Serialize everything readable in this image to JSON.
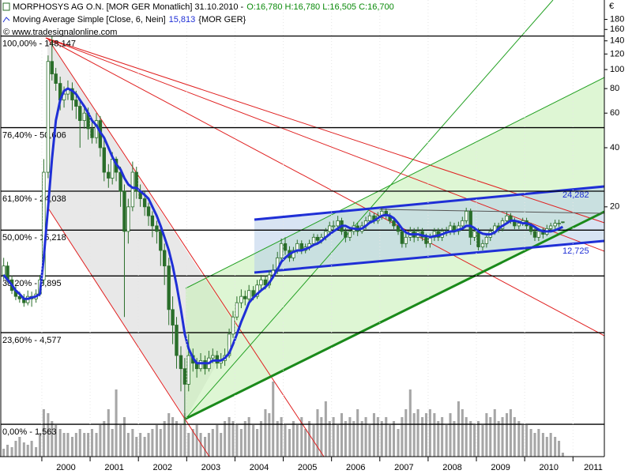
{
  "chart_data": {
    "type": "candlestick",
    "title": "MORPHOSYS AG O.N. [MOR GER  Monatlich] 31.10.2010 -",
    "ohlc_label": "O:16,780 H:16,780 L:16,505 C:16,700",
    "indicator_label": "Moving Average Simple [Close, 6, Nein]",
    "indicator_value_label": "15,813",
    "indicator_symbol": "{MOR GER}",
    "source": "© www.tradesignalonline.com",
    "y_axis_label": "€",
    "color": "#2a6e2a",
    "log_scale": true,
    "ylim": [
      1.07,
      226
    ],
    "yticks": [
      20,
      40,
      60,
      80,
      100,
      120,
      140,
      160,
      180
    ],
    "xlim": [
      1999.15,
      2011.65
    ],
    "xticks": [
      2000,
      2001,
      2002,
      2003,
      2004,
      2005,
      2006,
      2007,
      2008,
      2009,
      2010,
      2011
    ],
    "x": [
      1999.21,
      1999.29,
      1999.38,
      1999.46,
      1999.54,
      1999.63,
      1999.71,
      1999.79,
      1999.88,
      1999.96,
      2000.04,
      2000.13,
      2000.21,
      2000.29,
      2000.38,
      2000.46,
      2000.54,
      2000.63,
      2000.71,
      2000.79,
      2000.88,
      2000.96,
      2001.04,
      2001.13,
      2001.21,
      2001.29,
      2001.38,
      2001.46,
      2001.54,
      2001.63,
      2001.71,
      2001.79,
      2001.88,
      2001.96,
      2002.04,
      2002.13,
      2002.21,
      2002.29,
      2002.38,
      2002.46,
      2002.54,
      2002.63,
      2002.71,
      2002.79,
      2002.88,
      2002.96,
      2003.04,
      2003.13,
      2003.21,
      2003.29,
      2003.38,
      2003.46,
      2003.54,
      2003.63,
      2003.71,
      2003.79,
      2003.88,
      2003.96,
      2004.04,
      2004.13,
      2004.21,
      2004.29,
      2004.38,
      2004.46,
      2004.54,
      2004.63,
      2004.71,
      2004.79,
      2004.88,
      2004.96,
      2005.04,
      2005.13,
      2005.21,
      2005.29,
      2005.38,
      2005.46,
      2005.54,
      2005.63,
      2005.71,
      2005.79,
      2005.88,
      2005.96,
      2006.04,
      2006.13,
      2006.21,
      2006.29,
      2006.38,
      2006.46,
      2006.54,
      2006.63,
      2006.71,
      2006.79,
      2006.88,
      2006.96,
      2007.04,
      2007.13,
      2007.21,
      2007.29,
      2007.38,
      2007.46,
      2007.54,
      2007.63,
      2007.71,
      2007.79,
      2007.88,
      2007.96,
      2008.04,
      2008.13,
      2008.21,
      2008.29,
      2008.38,
      2008.46,
      2008.54,
      2008.63,
      2008.71,
      2008.79,
      2008.88,
      2008.96,
      2009.04,
      2009.13,
      2009.21,
      2009.29,
      2009.38,
      2009.46,
      2009.54,
      2009.63,
      2009.71,
      2009.79,
      2009.88,
      2009.96,
      2010.04,
      2010.13,
      2010.21,
      2010.29,
      2010.38,
      2010.46,
      2010.54,
      2010.63,
      2010.71,
      2010.79
    ],
    "open": [
      9,
      10,
      8.5,
      7.5,
      7,
      6.8,
      6.5,
      7,
      6.8,
      7.2,
      8.5,
      30,
      110,
      95,
      85,
      70,
      75,
      80,
      70,
      65,
      55,
      60,
      50,
      45,
      55,
      40,
      30,
      28,
      35,
      30,
      24,
      15,
      20,
      30,
      24,
      22,
      20,
      18,
      16,
      15,
      12,
      10,
      6,
      5,
      3.5,
      3,
      2.5,
      3.5,
      3.2,
      3,
      3.3,
      3,
      3.4,
      3.5,
      3.2,
      3.3,
      3.5,
      4.5,
      5.5,
      6.5,
      7,
      6.8,
      7.5,
      7,
      8,
      8.5,
      8,
      9,
      9.5,
      11,
      13,
      12,
      11,
      12,
      13,
      12,
      12.5,
      13,
      14,
      13.5,
      14,
      15,
      16,
      16,
      17,
      15,
      14,
      15,
      16,
      15,
      16,
      17,
      18,
      17,
      18,
      19,
      18,
      17,
      16,
      15,
      13,
      14,
      15,
      14,
      15,
      14,
      13,
      14,
      15,
      14,
      15,
      15,
      16,
      15,
      16,
      17,
      19,
      14,
      15,
      12.5,
      13,
      14,
      15,
      16,
      15.5,
      17,
      18,
      17,
      16,
      16.5,
      17,
      16,
      15,
      14,
      15,
      14.5,
      15.5,
      16,
      16.5,
      16.78
    ],
    "high": [
      11,
      10.5,
      8.9,
      7.9,
      7.4,
      7.2,
      7.5,
      7.4,
      7.6,
      9,
      35,
      118,
      148.147,
      102,
      92,
      82,
      88,
      86,
      78,
      70,
      66,
      64,
      56,
      60,
      58,
      44,
      33,
      38,
      36,
      32,
      26,
      22,
      34,
      32,
      26,
      24,
      21,
      19,
      17,
      16,
      13,
      11,
      7,
      5.5,
      3.9,
      3.4,
      4.5,
      3.8,
      3.4,
      3.6,
      3.5,
      3.7,
      3.8,
      3.7,
      3.6,
      3.8,
      4.8,
      5.9,
      7,
      7.6,
      7.5,
      8,
      7.9,
      8.5,
      9,
      8.9,
      9.5,
      10.2,
      11.8,
      13.8,
      14,
      12.6,
      12.5,
      13.6,
      13.5,
      13,
      13.6,
      14.6,
      14.5,
      14.6,
      15.6,
      16.8,
      17,
      18,
      17.6,
      15.6,
      15.8,
      16.8,
      16.6,
      16.8,
      17.8,
      18.8,
      18.6,
      18.8,
      19.8,
      19.6,
      18.6,
      17.6,
      16.6,
      15.6,
      14.6,
      15.8,
      15.6,
      15.8,
      15.6,
      14.6,
      14.6,
      15.6,
      15.6,
      15.6,
      15.8,
      16.8,
      16.6,
      16.8,
      17.8,
      19.8,
      19.6,
      15.6,
      15.6,
      13.6,
      14.6,
      15.6,
      16.6,
      16.6,
      17.6,
      18.8,
      18.6,
      17.6,
      17,
      17.6,
      17.6,
      16.6,
      15.6,
      15.6,
      15.6,
      16.2,
      16.6,
      17.2,
      17.2,
      16.78
    ],
    "low": [
      8.5,
      8.2,
      7.2,
      6.7,
      6.5,
      6.2,
      6.3,
      6.2,
      6.5,
      7,
      8,
      28,
      88,
      78,
      62,
      64,
      70,
      62,
      56,
      40,
      50,
      44,
      42,
      42,
      36,
      27,
      25,
      26,
      27,
      20,
      5.5,
      13,
      19,
      22,
      20,
      18,
      16,
      14,
      13,
      10,
      8,
      5,
      4,
      3,
      2.3,
      1.563,
      2.3,
      2.9,
      2.7,
      2.9,
      2.8,
      2.9,
      3.2,
      3,
      3,
      3.1,
      3.4,
      4.3,
      5.3,
      6.1,
      6.3,
      6.5,
      6.7,
      6.8,
      7.6,
      7.6,
      7.7,
      8.6,
      9.1,
      10.6,
      11.4,
      10.5,
      10.6,
      11.6,
      11.5,
      11.6,
      12,
      12.6,
      13,
      13,
      13.5,
      14.6,
      15,
      15.4,
      14.4,
      13.2,
      13.4,
      14.4,
      14.2,
      14.6,
      15.4,
      16.4,
      16.4,
      16.4,
      17.2,
      17.4,
      16.4,
      15.4,
      14.4,
      12.4,
      12.4,
      13.4,
      13.2,
      13.4,
      13.4,
      12.4,
      12.4,
      13.4,
      13.4,
      13.4,
      14.2,
      14.4,
      14.4,
      14.4,
      15.4,
      16.4,
      12.8,
      13.4,
      12,
      12,
      12.4,
      13.4,
      14.4,
      14.8,
      15,
      16.4,
      16.4,
      15.4,
      15.4,
      16,
      15.4,
      14.4,
      13.4,
      13.4,
      13.8,
      14.2,
      15,
      15.4,
      15.8,
      16.505
    ],
    "close": [
      10,
      8.5,
      7.5,
      7,
      6.8,
      6.5,
      7,
      6.8,
      7.2,
      8.5,
      30,
      110,
      95,
      85,
      70,
      75,
      80,
      70,
      65,
      55,
      60,
      50,
      45,
      55,
      40,
      30,
      28,
      35,
      30,
      24,
      15,
      20,
      30,
      24,
      22,
      20,
      18,
      16,
      15,
      12,
      10,
      6,
      5,
      3.5,
      3,
      2.5,
      3.5,
      3.2,
      3,
      3.3,
      3,
      3.4,
      3.5,
      3.2,
      3.3,
      3.5,
      4.5,
      5.5,
      6.5,
      7,
      6.8,
      7.5,
      7,
      8,
      8.5,
      8,
      9,
      9.5,
      11,
      13,
      12,
      11,
      12,
      13,
      12,
      12.5,
      13,
      14,
      13.5,
      14,
      15,
      16,
      16,
      17,
      15,
      14,
      15,
      16,
      15,
      16,
      17,
      18,
      17,
      18,
      19,
      18,
      17,
      16,
      15,
      13,
      14,
      15,
      14,
      15,
      14,
      13,
      14,
      15,
      14,
      15,
      15,
      16,
      15,
      16,
      17,
      19,
      14,
      15,
      12.5,
      13,
      14,
      15,
      16,
      15.5,
      17,
      18,
      17,
      16,
      16.5,
      17,
      16,
      15,
      14,
      15,
      14.5,
      15.5,
      16,
      16.5,
      16.5,
      16.7
    ],
    "moving_average": {
      "color": "#1f2fd6",
      "values": [
        9,
        8.5,
        8,
        7.5,
        7.2,
        6.8,
        6.8,
        6.9,
        7,
        7.2,
        11,
        20,
        35,
        55,
        70,
        78,
        80,
        78,
        75,
        70,
        65,
        60,
        55,
        52,
        48,
        45,
        40,
        36,
        33,
        31,
        28,
        26,
        25,
        25,
        24,
        23,
        22,
        20,
        18,
        16,
        14,
        12,
        10,
        8,
        6,
        4.5,
        3.8,
        3.4,
        3.2,
        3.2,
        3.2,
        3.2,
        3.3,
        3.3,
        3.3,
        3.4,
        3.6,
        4,
        4.5,
        5.2,
        5.8,
        6.5,
        6.9,
        7.2,
        7.5,
        7.8,
        8.2,
        8.8,
        9.6,
        10.5,
        11,
        11.5,
        11.8,
        12,
        12,
        12.2,
        12.4,
        12.8,
        13,
        13.4,
        14,
        14.5,
        15,
        15.5,
        16,
        16,
        15.6,
        15.5,
        15.4,
        15.5,
        16,
        16.6,
        17,
        17.5,
        18,
        18.2,
        18,
        17.5,
        16.5,
        15.5,
        14.8,
        14.5,
        14.5,
        14.5,
        14.3,
        14.2,
        14,
        14.2,
        14.3,
        14.5,
        14.8,
        15,
        15,
        15.3,
        15.5,
        16,
        16,
        15.6,
        15,
        14.6,
        14.5,
        14.5,
        14.8,
        15.5,
        16,
        16.5,
        17,
        17,
        16.8,
        16.5,
        16.5,
        16.2,
        15.8,
        15.3,
        15,
        15,
        15,
        15.2,
        15.5,
        15.813
      ]
    },
    "volume": {
      "color": "#a6a6a6",
      "axis": "y2",
      "values": [
        10,
        15,
        12,
        20,
        25,
        18,
        15,
        20,
        12,
        30,
        60,
        55,
        45,
        40,
        35,
        30,
        30,
        25,
        30,
        35,
        30,
        30,
        35,
        30,
        40,
        45,
        60,
        35,
        85,
        40,
        50,
        30,
        35,
        25,
        30,
        25,
        30,
        35,
        40,
        35,
        45,
        55,
        50,
        45,
        40,
        55,
        30,
        35,
        40,
        30,
        25,
        30,
        35,
        40,
        30,
        45,
        50,
        45,
        40,
        35,
        45,
        50,
        40,
        35,
        45,
        60,
        55,
        95,
        45,
        50,
        40,
        35,
        45,
        40,
        50,
        35,
        45,
        40,
        60,
        50,
        70,
        45,
        50,
        40,
        55,
        45,
        50,
        45,
        60,
        45,
        50,
        40,
        55,
        50,
        45,
        50,
        40,
        45,
        35,
        50,
        60,
        85,
        55,
        60,
        50,
        55,
        60,
        55,
        45,
        50,
        40,
        55,
        45,
        70,
        60,
        50,
        45,
        40,
        45,
        40,
        55,
        50,
        60,
        45,
        50,
        55,
        60,
        50,
        45,
        40,
        40,
        35,
        30,
        35,
        30,
        25,
        30,
        25,
        20,
        5
      ]
    },
    "y2lim": [
      0,
      100
    ],
    "fib_levels": [
      {
        "value": 148.147,
        "label": "100,00% - 148,147"
      },
      {
        "value": 50.606,
        "label": "76,40% - 50,606"
      },
      {
        "value": 24.038,
        "label": "61,80% - 24,038"
      },
      {
        "value": 15.218,
        "label": "50,00% - 15,218"
      },
      {
        "value": 8.895,
        "label": "38,20% - 8,895"
      },
      {
        "value": 4.577,
        "label": "23,60% - 4,577"
      },
      {
        "value": 1.563,
        "label": "0,00% - 1,563"
      }
    ],
    "annotations": [
      "24,282",
      "12,725"
    ]
  }
}
